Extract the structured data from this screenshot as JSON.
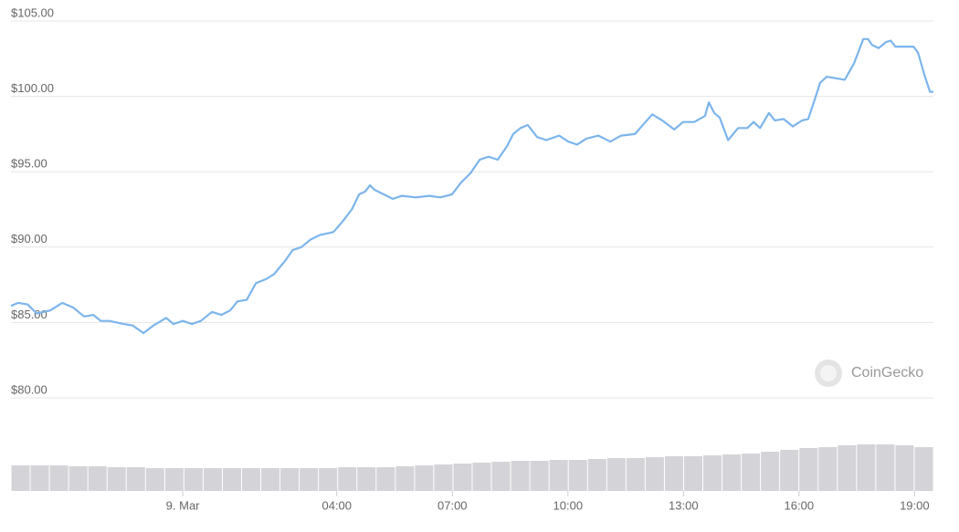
{
  "chart_data": {
    "type": "line",
    "color": "#7cb5ec",
    "grid": true,
    "x": [
      -4.46,
      -4.27,
      -4.03,
      -3.79,
      -3.44,
      -3.13,
      -2.85,
      -2.56,
      -2.32,
      -2.13,
      -1.9,
      -1.54,
      -1.3,
      -1.02,
      -0.76,
      -0.43,
      -0.24,
      0,
      0.24,
      0.47,
      0.76,
      1.0,
      1.23,
      1.42,
      1.66,
      1.9,
      2.18,
      2.37,
      2.66,
      2.85,
      3.08,
      3.32,
      3.56,
      3.91,
      4.15,
      4.39,
      4.58,
      4.74,
      4.86,
      4.98,
      5.22,
      5.45,
      5.69,
      6.05,
      6.4,
      6.69,
      6.99,
      7.23,
      7.47,
      7.71,
      7.94,
      8.18,
      8.42,
      8.58,
      8.77,
      8.96,
      9.2,
      9.44,
      9.77,
      10.01,
      10.24,
      10.48,
      10.79,
      11.1,
      11.38,
      11.74,
      11.98,
      12.19,
      12.45,
      12.76,
      12.99,
      13.28,
      13.56,
      13.66,
      13.8,
      13.94,
      14.16,
      14.42,
      14.66,
      14.82,
      14.99,
      15.22,
      15.37,
      15.6,
      15.84,
      16.08,
      16.24,
      16.41,
      16.55,
      16.72,
      16.96,
      17.19,
      17.43,
      17.67,
      17.79,
      17.9,
      18.07,
      18.26,
      18.38,
      18.5,
      18.73,
      18.97,
      19.09,
      19.26,
      19.4,
      19.49
    ],
    "values": [
      86.1,
      86.3,
      86.2,
      85.6,
      85.8,
      86.3,
      86.0,
      85.4,
      85.5,
      85.1,
      85.1,
      84.9,
      84.8,
      84.3,
      84.8,
      85.3,
      84.9,
      85.1,
      84.9,
      85.1,
      85.7,
      85.5,
      85.8,
      86.4,
      86.5,
      87.6,
      87.9,
      88.2,
      89.1,
      89.8,
      90.0,
      90.5,
      90.8,
      91.0,
      91.7,
      92.5,
      93.5,
      93.7,
      94.1,
      93.8,
      93.5,
      93.2,
      93.4,
      93.3,
      93.4,
      93.3,
      93.5,
      94.3,
      94.9,
      95.8,
      96.0,
      95.8,
      96.7,
      97.5,
      97.9,
      98.1,
      97.3,
      97.1,
      97.4,
      97.0,
      96.8,
      97.2,
      97.4,
      97.0,
      97.4,
      97.5,
      98.2,
      98.8,
      98.4,
      97.8,
      98.3,
      98.3,
      98.7,
      99.6,
      98.9,
      98.6,
      97.1,
      97.9,
      97.9,
      98.3,
      97.9,
      98.9,
      98.4,
      98.5,
      98.0,
      98.4,
      98.5,
      99.8,
      100.9,
      101.3,
      101.2,
      101.1,
      102.2,
      103.8,
      103.8,
      103.4,
      103.2,
      103.6,
      103.7,
      103.3,
      103.3,
      103.3,
      102.9,
      101.4,
      100.3,
      100.3
    ],
    "xlim": [
      -4.46,
      19.49
    ],
    "xticks": [
      {
        "value": 0,
        "label": "9. Mar"
      },
      {
        "value": 4,
        "label": "04:00"
      },
      {
        "value": 7,
        "label": "07:00"
      },
      {
        "value": 10,
        "label": "10:00"
      },
      {
        "value": 13,
        "label": "13:00"
      },
      {
        "value": 16,
        "label": "16:00"
      },
      {
        "value": 19,
        "label": "19:00"
      }
    ],
    "ylim": [
      80,
      105
    ],
    "yticks": [
      {
        "value": 80,
        "label": "$80.00"
      },
      {
        "value": 85,
        "label": "$85.00"
      },
      {
        "value": 90,
        "label": "$90.00"
      },
      {
        "value": 95,
        "label": "$95.00"
      },
      {
        "value": 100,
        "label": "$100.00"
      },
      {
        "value": 105,
        "label": "$105.00"
      }
    ],
    "volume": {
      "color": "#d4d4d8",
      "ylim": [
        0,
        60
      ],
      "values": [
        28,
        28,
        28,
        27,
        27,
        26,
        26,
        25,
        25,
        25,
        25,
        25,
        25,
        25,
        25,
        25,
        25,
        26,
        26,
        26,
        27,
        28,
        29,
        30,
        31,
        32,
        33,
        33,
        34,
        34,
        35,
        36,
        36,
        37,
        38,
        38,
        39,
        40,
        41,
        43,
        45,
        47,
        48,
        50,
        51,
        51,
        50,
        48
      ]
    },
    "watermark": "CoinGecko"
  }
}
